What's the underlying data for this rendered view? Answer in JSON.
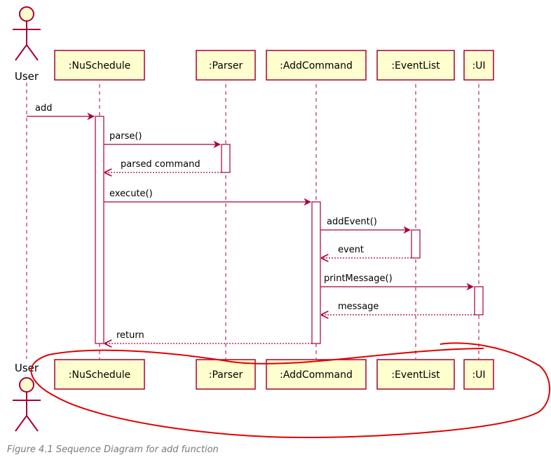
{
  "diagram": {
    "participants": [
      {
        "key": "user",
        "label": "User",
        "type": "actor"
      },
      {
        "key": "nuschedule",
        "label": ":NuSchedule",
        "type": "box"
      },
      {
        "key": "parser",
        "label": ":Parser",
        "type": "box"
      },
      {
        "key": "addcommand",
        "label": ":AddCommand",
        "type": "box"
      },
      {
        "key": "eventlist",
        "label": ":EventList",
        "type": "box"
      },
      {
        "key": "ui",
        "label": ":UI",
        "type": "box"
      }
    ],
    "messages": [
      {
        "from": "user",
        "to": "nuschedule",
        "label": "add",
        "kind": "call"
      },
      {
        "from": "nuschedule",
        "to": "parser",
        "label": "parse()",
        "kind": "call"
      },
      {
        "from": "parser",
        "to": "nuschedule",
        "label": "parsed command",
        "kind": "return"
      },
      {
        "from": "nuschedule",
        "to": "addcommand",
        "label": "execute()",
        "kind": "call"
      },
      {
        "from": "addcommand",
        "to": "eventlist",
        "label": "addEvent()",
        "kind": "call"
      },
      {
        "from": "eventlist",
        "to": "addcommand",
        "label": "event",
        "kind": "return"
      },
      {
        "from": "addcommand",
        "to": "ui",
        "label": "printMessage()",
        "kind": "call"
      },
      {
        "from": "ui",
        "to": "addcommand",
        "label": "message",
        "kind": "return"
      },
      {
        "from": "addcommand",
        "to": "nuschedule",
        "label": "return",
        "kind": "return"
      }
    ],
    "colors": {
      "line": "#a80036",
      "box_fill": "#fefece",
      "annotation": "#e00000"
    }
  },
  "caption": "Figure 4.1 Sequence Diagram for add function"
}
